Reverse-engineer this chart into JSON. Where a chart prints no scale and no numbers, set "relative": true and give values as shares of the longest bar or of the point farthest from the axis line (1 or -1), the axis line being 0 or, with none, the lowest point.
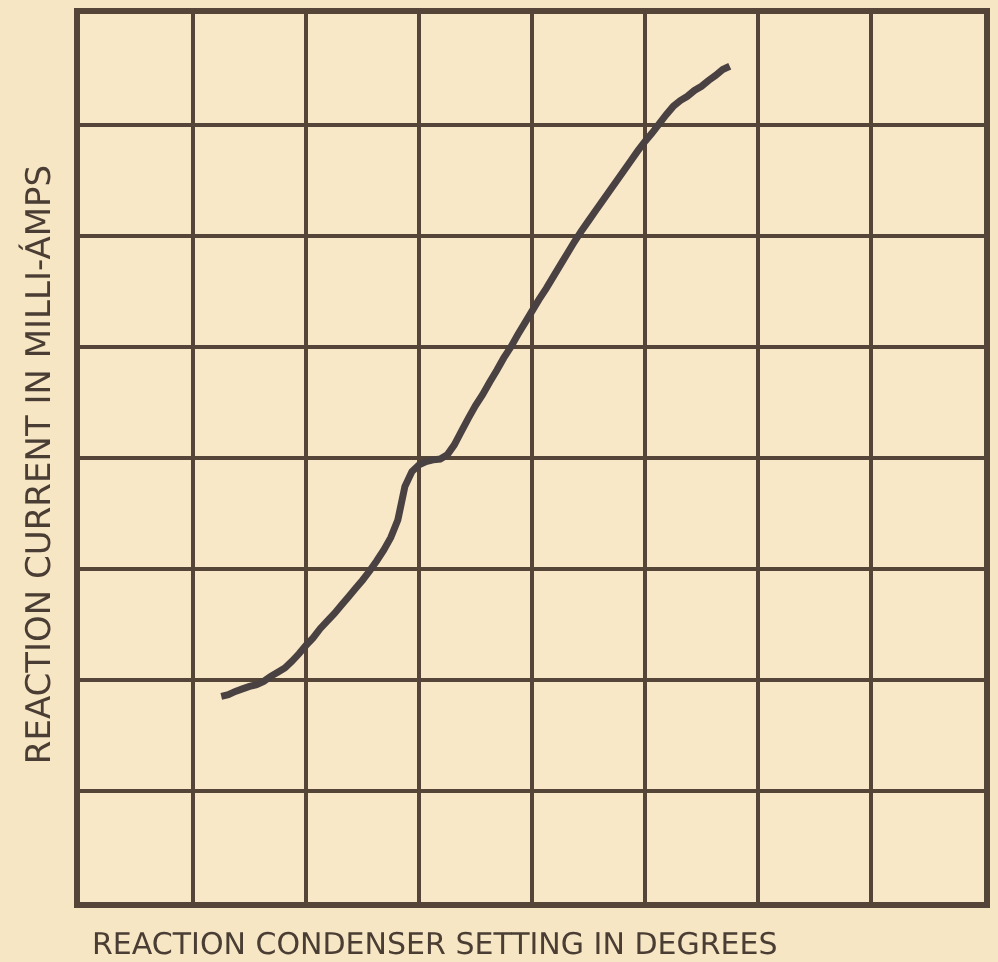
{
  "chart_data": {
    "type": "line",
    "xlabel": "REACTION CONDENSER SETTING IN DEGREES",
    "ylabel": "REACTION CURRENT IN MILLI-ÁMPS",
    "relative": true,
    "grid": true,
    "color": "#4a4242",
    "categories": [
      null,
      null,
      null,
      null,
      null,
      null,
      null,
      null,
      null,
      null,
      null,
      null,
      null,
      null,
      null,
      null,
      null,
      null,
      null,
      null,
      null,
      null,
      null,
      null,
      null,
      null,
      null,
      null,
      null,
      null,
      null,
      null,
      null,
      null,
      null,
      null,
      null,
      null,
      null,
      null,
      null,
      null,
      null,
      null,
      null,
      null,
      null,
      null,
      null,
      null,
      null,
      null,
      null,
      null,
      null,
      null,
      null,
      null,
      null,
      null,
      null,
      null,
      null,
      null,
      null,
      null,
      null,
      null,
      null,
      null,
      null,
      null,
      null,
      null,
      null,
      null,
      null,
      null,
      null,
      null,
      null,
      null,
      null,
      null,
      null,
      null,
      null,
      null,
      null,
      null,
      null,
      null,
      null,
      null,
      null,
      null,
      null,
      null,
      null,
      null,
      null,
      null,
      null,
      null,
      null,
      null,
      null,
      null,
      null,
      null,
      null,
      null,
      null,
      null,
      null,
      null,
      null,
      null,
      null,
      null,
      null,
      null,
      null,
      null,
      null,
      null,
      null,
      null,
      null
    ],
    "values": [
      null,
      null,
      null,
      null,
      null,
      null,
      null,
      null,
      null,
      null,
      null,
      null,
      null,
      null,
      null,
      null,
      null,
      null,
      null,
      null,
      0.246,
      0.248,
      0.252,
      0.255,
      0.258,
      0.26,
      0.264,
      0.27,
      0.275,
      0.28,
      0.288,
      0.297,
      0.307,
      0.316,
      0.327,
      0.336,
      0.345,
      0.355,
      0.365,
      0.375,
      0.385,
      0.396,
      0.408,
      0.421,
      0.436,
      0.457,
      0.497,
      0.515,
      0.523,
      0.527,
      0.529,
      0.53,
      0.535,
      0.547,
      0.563,
      0.579,
      0.594,
      0.607,
      0.622,
      0.636,
      0.651,
      0.664,
      0.679,
      0.693,
      0.707,
      0.721,
      0.734,
      0.748,
      0.762,
      0.776,
      0.79,
      0.803,
      0.815,
      0.827,
      0.839,
      0.851,
      0.863,
      0.875,
      0.887,
      0.899,
      0.91,
      0.92,
      0.931,
      0.942,
      0.952,
      0.959,
      0.964,
      0.971,
      0.976,
      0.983,
      0.989,
      0.996,
      1,
      null,
      null,
      null,
      null,
      null,
      null,
      null,
      null,
      null,
      null,
      null,
      null,
      null,
      null,
      null,
      null,
      null,
      null,
      null,
      null,
      null,
      null,
      null,
      null,
      null,
      null,
      null,
      null,
      null,
      null,
      null,
      null,
      null,
      null,
      null,
      null
    ]
  }
}
